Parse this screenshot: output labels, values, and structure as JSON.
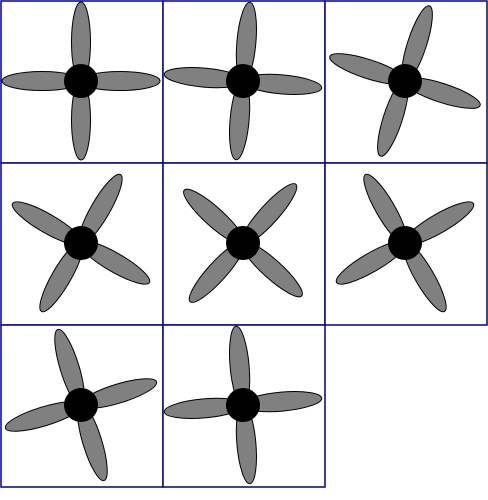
{
  "sprite_sheet": {
    "columns": 3,
    "frame_count": 8,
    "frame_border_color": "#000080",
    "background_color": "#ffffff",
    "blade_color": "#808080",
    "blade_outline_color": "#000000",
    "hub_color": "#000000",
    "frames": [
      {
        "index": 1,
        "rotation_deg": 0
      },
      {
        "index": 2,
        "rotation_deg": 5
      },
      {
        "index": 3,
        "rotation_deg": 18
      },
      {
        "index": 4,
        "rotation_deg": 30
      },
      {
        "index": 5,
        "rotation_deg": 42
      },
      {
        "index": 6,
        "rotation_deg": 60
      },
      {
        "index": 7,
        "rotation_deg": 73
      },
      {
        "index": 8,
        "rotation_deg": 85
      }
    ]
  }
}
